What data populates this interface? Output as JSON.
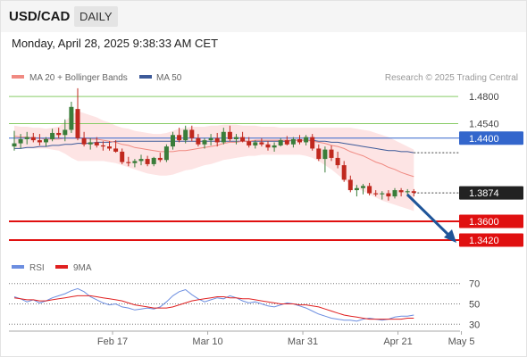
{
  "header": {
    "symbol": "USD/CAD",
    "timeframe": "DAILY"
  },
  "datetime": "Monday, April 28, 2025 9:38:33 AM CET",
  "legend": {
    "ma20_label": "MA 20 + Bollinger Bands",
    "ma50_label": "MA 50",
    "credit": "Research © 2025 Trading Central"
  },
  "rsi_legend": {
    "rsi_label": "RSI",
    "ma_label": "9MA"
  },
  "colors": {
    "up": "#3a7d3a",
    "down": "#c0281e",
    "ma20": "#f08a82",
    "ma50": "#3d5a99",
    "band": "#fde4e4",
    "support": "#e01010",
    "pivot": "#3366cc",
    "resistance": "#88cc66",
    "arrow": "#1f5599",
    "rsi": "#6c8ee0",
    "rsi_ma": "#e02020"
  },
  "chart_data": {
    "type": "candlestick",
    "ylim": [
      1.33,
      1.487
    ],
    "x_ticks": [
      {
        "label": "Feb 17",
        "x": 15.5
      },
      {
        "label": "Mar 10",
        "x": 30.5
      },
      {
        "label": "Mar 31",
        "x": 45.5
      },
      {
        "label": "Apr 21",
        "x": 60.5
      },
      {
        "label": "May 5",
        "x": 70.5
      }
    ],
    "levels": [
      {
        "value": 1.48,
        "label": "1.4800",
        "type": "resistance"
      },
      {
        "value": 1.454,
        "label": "1.4540",
        "type": "resistance"
      },
      {
        "value": 1.44,
        "label": "1.4400",
        "type": "pivot"
      },
      {
        "value": 1.3874,
        "label": "1.3874",
        "type": "last"
      },
      {
        "value": 1.36,
        "label": "1.3600",
        "type": "support"
      },
      {
        "value": 1.342,
        "label": "1.3420",
        "type": "support"
      }
    ],
    "ohlc": [
      [
        1.432,
        1.447,
        1.428,
        1.435
      ],
      [
        1.435,
        1.444,
        1.43,
        1.439
      ],
      [
        1.439,
        1.446,
        1.434,
        1.441
      ],
      [
        1.441,
        1.445,
        1.436,
        1.438
      ],
      [
        1.438,
        1.444,
        1.433,
        1.436
      ],
      [
        1.436,
        1.441,
        1.432,
        1.439
      ],
      [
        1.439,
        1.449,
        1.437,
        1.445
      ],
      [
        1.445,
        1.45,
        1.44,
        1.443
      ],
      [
        1.443,
        1.458,
        1.437,
        1.448
      ],
      [
        1.448,
        1.475,
        1.445,
        1.47
      ],
      [
        1.468,
        1.488,
        1.438,
        1.44
      ],
      [
        1.44,
        1.446,
        1.432,
        1.434
      ],
      [
        1.434,
        1.44,
        1.429,
        1.436
      ],
      [
        1.436,
        1.441,
        1.431,
        1.433
      ],
      [
        1.433,
        1.437,
        1.428,
        1.432
      ],
      [
        1.432,
        1.437,
        1.428,
        1.43
      ],
      [
        1.43,
        1.438,
        1.426,
        1.427
      ],
      [
        1.427,
        1.43,
        1.415,
        1.417
      ],
      [
        1.417,
        1.422,
        1.413,
        1.416
      ],
      [
        1.416,
        1.42,
        1.412,
        1.418
      ],
      [
        1.418,
        1.424,
        1.414,
        1.42
      ],
      [
        1.42,
        1.423,
        1.413,
        1.415
      ],
      [
        1.415,
        1.422,
        1.413,
        1.421
      ],
      [
        1.421,
        1.426,
        1.417,
        1.419
      ],
      [
        1.419,
        1.434,
        1.417,
        1.432
      ],
      [
        1.432,
        1.446,
        1.429,
        1.443
      ],
      [
        1.443,
        1.45,
        1.436,
        1.438
      ],
      [
        1.438,
        1.452,
        1.435,
        1.448
      ],
      [
        1.448,
        1.452,
        1.437,
        1.44
      ],
      [
        1.44,
        1.444,
        1.432,
        1.434
      ],
      [
        1.434,
        1.44,
        1.43,
        1.438
      ],
      [
        1.438,
        1.444,
        1.433,
        1.44
      ],
      [
        1.44,
        1.445,
        1.432,
        1.436
      ],
      [
        1.436,
        1.45,
        1.434,
        1.446
      ],
      [
        1.446,
        1.452,
        1.437,
        1.439
      ],
      [
        1.439,
        1.444,
        1.434,
        1.441
      ],
      [
        1.441,
        1.446,
        1.436,
        1.437
      ],
      [
        1.437,
        1.441,
        1.431,
        1.433
      ],
      [
        1.433,
        1.438,
        1.43,
        1.436
      ],
      [
        1.436,
        1.44,
        1.432,
        1.434
      ],
      [
        1.434,
        1.437,
        1.428,
        1.431
      ],
      [
        1.431,
        1.436,
        1.427,
        1.433
      ],
      [
        1.433,
        1.44,
        1.432,
        1.438
      ],
      [
        1.438,
        1.442,
        1.433,
        1.434
      ],
      [
        1.434,
        1.441,
        1.431,
        1.439
      ],
      [
        1.439,
        1.443,
        1.434,
        1.436
      ],
      [
        1.436,
        1.443,
        1.433,
        1.441
      ],
      [
        1.441,
        1.444,
        1.428,
        1.43
      ],
      [
        1.43,
        1.434,
        1.418,
        1.42
      ],
      [
        1.42,
        1.432,
        1.407,
        1.429
      ],
      [
        1.429,
        1.433,
        1.418,
        1.421
      ],
      [
        1.421,
        1.427,
        1.411,
        1.414
      ],
      [
        1.414,
        1.418,
        1.398,
        1.4
      ],
      [
        1.4,
        1.404,
        1.388,
        1.39
      ],
      [
        1.39,
        1.395,
        1.384,
        1.392
      ],
      [
        1.392,
        1.396,
        1.386,
        1.394
      ],
      [
        1.394,
        1.397,
        1.385,
        1.387
      ],
      [
        1.387,
        1.39,
        1.384,
        1.386
      ],
      [
        1.386,
        1.389,
        1.381,
        1.387
      ],
      [
        1.387,
        1.39,
        1.38,
        1.384
      ],
      [
        1.384,
        1.392,
        1.382,
        1.39
      ],
      [
        1.39,
        1.392,
        1.384,
        1.388
      ],
      [
        1.388,
        1.391,
        1.384,
        1.389
      ],
      [
        1.389,
        1.391,
        1.384,
        1.3874
      ]
    ],
    "ma20": [
      1.442,
      1.441,
      1.441,
      1.44,
      1.44,
      1.439,
      1.439,
      1.439,
      1.44,
      1.44,
      1.44,
      1.44,
      1.439,
      1.439,
      1.438,
      1.437,
      1.436,
      1.434,
      1.433,
      1.431,
      1.43,
      1.429,
      1.428,
      1.427,
      1.427,
      1.427,
      1.428,
      1.428,
      1.429,
      1.43,
      1.431,
      1.432,
      1.433,
      1.435,
      1.436,
      1.436,
      1.437,
      1.437,
      1.438,
      1.438,
      1.438,
      1.438,
      1.438,
      1.438,
      1.438,
      1.438,
      1.438,
      1.437,
      1.436,
      1.435,
      1.433,
      1.432,
      1.43,
      1.427,
      1.425,
      1.423,
      1.42,
      1.417,
      1.415,
      1.412,
      1.41,
      1.407,
      1.405,
      1.403
    ],
    "bb_upper": [
      1.452,
      1.451,
      1.451,
      1.45,
      1.45,
      1.449,
      1.45,
      1.451,
      1.456,
      1.462,
      1.466,
      1.464,
      1.462,
      1.46,
      1.457,
      1.455,
      1.452,
      1.45,
      1.449,
      1.447,
      1.446,
      1.445,
      1.444,
      1.444,
      1.445,
      1.447,
      1.449,
      1.45,
      1.451,
      1.451,
      1.451,
      1.452,
      1.452,
      1.453,
      1.453,
      1.453,
      1.452,
      1.452,
      1.452,
      1.451,
      1.451,
      1.451,
      1.45,
      1.45,
      1.45,
      1.45,
      1.45,
      1.45,
      1.45,
      1.45,
      1.45,
      1.45,
      1.45,
      1.45,
      1.449,
      1.448,
      1.447,
      1.445,
      1.443,
      1.441,
      1.438,
      1.435,
      1.432,
      1.429
    ],
    "bb_lower": [
      1.431,
      1.43,
      1.43,
      1.43,
      1.43,
      1.43,
      1.429,
      1.428,
      1.425,
      1.421,
      1.418,
      1.418,
      1.418,
      1.418,
      1.418,
      1.417,
      1.416,
      1.414,
      1.412,
      1.41,
      1.408,
      1.406,
      1.405,
      1.404,
      1.404,
      1.405,
      1.407,
      1.409,
      1.41,
      1.412,
      1.414,
      1.415,
      1.417,
      1.419,
      1.42,
      1.421,
      1.422,
      1.423,
      1.423,
      1.424,
      1.424,
      1.424,
      1.424,
      1.424,
      1.424,
      1.424,
      1.423,
      1.421,
      1.418,
      1.414,
      1.41,
      1.405,
      1.4,
      1.396,
      1.392,
      1.389,
      1.386,
      1.383,
      1.38,
      1.378,
      1.376,
      1.374,
      1.372,
      1.37
    ],
    "ma50": [
      1.43,
      1.43,
      1.431,
      1.431,
      1.432,
      1.432,
      1.433,
      1.433,
      1.434,
      1.434,
      1.435,
      1.435,
      1.435,
      1.436,
      1.436,
      1.436,
      1.437,
      1.437,
      1.437,
      1.437,
      1.437,
      1.437,
      1.437,
      1.437,
      1.437,
      1.437,
      1.437,
      1.437,
      1.437,
      1.437,
      1.437,
      1.437,
      1.437,
      1.437,
      1.437,
      1.437,
      1.437,
      1.437,
      1.437,
      1.437,
      1.437,
      1.437,
      1.437,
      1.437,
      1.438,
      1.438,
      1.438,
      1.438,
      1.437,
      1.437,
      1.436,
      1.436,
      1.435,
      1.434,
      1.433,
      1.432,
      1.431,
      1.43,
      1.429,
      1.428,
      1.428,
      1.427,
      1.427,
      1.426
    ],
    "rsi": {
      "ylim": [
        25,
        75
      ],
      "ticks": [
        70,
        50,
        30
      ],
      "rsi": [
        57,
        55,
        52,
        54,
        51,
        53,
        56,
        58,
        60,
        63,
        65,
        62,
        57,
        54,
        51,
        49,
        50,
        47,
        46,
        44,
        45,
        46,
        45,
        47,
        52,
        58,
        62,
        64,
        59,
        55,
        52,
        54,
        56,
        55,
        58,
        56,
        53,
        51,
        52,
        50,
        48,
        47,
        49,
        51,
        50,
        48,
        46,
        43,
        40,
        38,
        36,
        35,
        34,
        34,
        33,
        35,
        36,
        35,
        34,
        35,
        37,
        38,
        38,
        39
      ],
      "ma": [
        56,
        55,
        54,
        54,
        53,
        53,
        54,
        55,
        56,
        57,
        58,
        58,
        58,
        57,
        56,
        55,
        54,
        53,
        51,
        49,
        48,
        47,
        46,
        46,
        46,
        47,
        49,
        51,
        53,
        54,
        55,
        56,
        57,
        57,
        56,
        56,
        55,
        55,
        54,
        53,
        52,
        51,
        50,
        50,
        50,
        49,
        49,
        48,
        47,
        45,
        43,
        41,
        39,
        38,
        37,
        36,
        35,
        35,
        35,
        35,
        35,
        35,
        36,
        36
      ]
    }
  }
}
